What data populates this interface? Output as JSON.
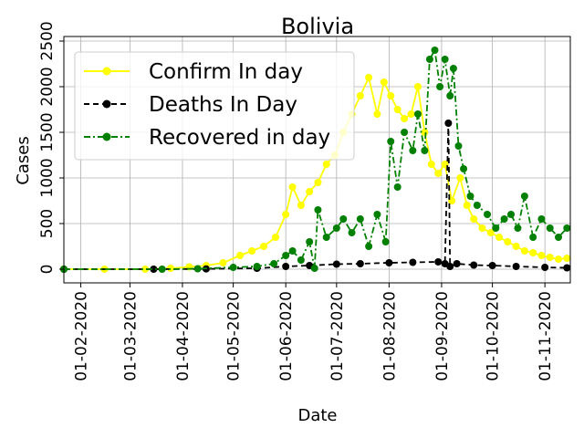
{
  "chart_data": {
    "type": "line",
    "title": "Bolivia",
    "xlabel": "Date",
    "ylabel": "Cases",
    "x_range": [
      "2020-01-22",
      "2020-11-16"
    ],
    "ylim": [
      -150,
      2550
    ],
    "grid": true,
    "legend_position": "top-left",
    "x_ticks": [
      "01-02-2020",
      "01-03-2020",
      "01-04-2020",
      "01-05-2020",
      "01-06-2020",
      "01-07-2020",
      "01-08-2020",
      "01-09-2020",
      "01-10-2020",
      "01-11-2020"
    ],
    "x_tick_dates": [
      "2020-02-01",
      "2020-03-01",
      "2020-04-01",
      "2020-05-01",
      "2020-06-01",
      "2020-07-01",
      "2020-08-01",
      "2020-09-01",
      "2020-10-01",
      "2020-11-01"
    ],
    "y_ticks": [
      0,
      500,
      1000,
      1500,
      2000,
      2500
    ],
    "series": [
      {
        "name": "Confirm In day",
        "color": "#ffff00",
        "line_style": "solid",
        "marker": "circle",
        "points": [
          [
            "2020-01-22",
            0
          ],
          [
            "2020-02-15",
            0
          ],
          [
            "2020-03-10",
            0
          ],
          [
            "2020-03-25",
            10
          ],
          [
            "2020-04-05",
            25
          ],
          [
            "2020-04-15",
            40
          ],
          [
            "2020-04-25",
            70
          ],
          [
            "2020-05-05",
            150
          ],
          [
            "2020-05-12",
            200
          ],
          [
            "2020-05-19",
            250
          ],
          [
            "2020-05-26",
            350
          ],
          [
            "2020-06-01",
            600
          ],
          [
            "2020-06-05",
            900
          ],
          [
            "2020-06-10",
            700
          ],
          [
            "2020-06-15",
            850
          ],
          [
            "2020-06-20",
            950
          ],
          [
            "2020-06-25",
            1150
          ],
          [
            "2020-06-30",
            1250
          ],
          [
            "2020-07-05",
            1500
          ],
          [
            "2020-07-10",
            1700
          ],
          [
            "2020-07-15",
            1900
          ],
          [
            "2020-07-20",
            2100
          ],
          [
            "2020-07-25",
            1700
          ],
          [
            "2020-07-29",
            2050
          ],
          [
            "2020-08-02",
            1900
          ],
          [
            "2020-08-06",
            1750
          ],
          [
            "2020-08-10",
            1650
          ],
          [
            "2020-08-14",
            1700
          ],
          [
            "2020-08-18",
            2000
          ],
          [
            "2020-08-22",
            1500
          ],
          [
            "2020-08-26",
            1150
          ],
          [
            "2020-08-30",
            1050
          ],
          [
            "2020-09-03",
            1150
          ],
          [
            "2020-09-07",
            750
          ],
          [
            "2020-09-12",
            1000
          ],
          [
            "2020-09-16",
            700
          ],
          [
            "2020-09-20",
            550
          ],
          [
            "2020-09-25",
            450
          ],
          [
            "2020-09-30",
            400
          ],
          [
            "2020-10-05",
            350
          ],
          [
            "2020-10-10",
            300
          ],
          [
            "2020-10-15",
            250
          ],
          [
            "2020-10-20",
            200
          ],
          [
            "2020-10-25",
            180
          ],
          [
            "2020-10-30",
            150
          ],
          [
            "2020-11-04",
            130
          ],
          [
            "2020-11-09",
            110
          ],
          [
            "2020-11-14",
            120
          ]
        ]
      },
      {
        "name": "Deaths In Day",
        "color": "#000000",
        "line_style": "dashed",
        "marker": "circle",
        "points": [
          [
            "2020-01-22",
            0
          ],
          [
            "2020-03-15",
            0
          ],
          [
            "2020-04-15",
            3
          ],
          [
            "2020-05-15",
            10
          ],
          [
            "2020-06-01",
            30
          ],
          [
            "2020-06-15",
            40
          ],
          [
            "2020-07-01",
            55
          ],
          [
            "2020-07-15",
            60
          ],
          [
            "2020-08-01",
            70
          ],
          [
            "2020-08-15",
            75
          ],
          [
            "2020-08-30",
            80
          ],
          [
            "2020-09-03",
            60
          ],
          [
            "2020-09-05",
            1600
          ],
          [
            "2020-09-06",
            30
          ],
          [
            "2020-09-10",
            60
          ],
          [
            "2020-09-20",
            45
          ],
          [
            "2020-10-01",
            40
          ],
          [
            "2020-10-15",
            30
          ],
          [
            "2020-11-01",
            20
          ],
          [
            "2020-11-14",
            15
          ]
        ]
      },
      {
        "name": "Recovered in day",
        "color": "#008000",
        "line_style": "dashdot",
        "marker": "circle",
        "points": [
          [
            "2020-01-22",
            0
          ],
          [
            "2020-03-20",
            0
          ],
          [
            "2020-04-10",
            5
          ],
          [
            "2020-05-01",
            20
          ],
          [
            "2020-05-15",
            30
          ],
          [
            "2020-05-25",
            60
          ],
          [
            "2020-06-01",
            150
          ],
          [
            "2020-06-05",
            200
          ],
          [
            "2020-06-10",
            100
          ],
          [
            "2020-06-15",
            300
          ],
          [
            "2020-06-18",
            10
          ],
          [
            "2020-06-20",
            650
          ],
          [
            "2020-06-25",
            350
          ],
          [
            "2020-07-01",
            450
          ],
          [
            "2020-07-05",
            550
          ],
          [
            "2020-07-10",
            400
          ],
          [
            "2020-07-15",
            550
          ],
          [
            "2020-07-20",
            250
          ],
          [
            "2020-07-25",
            600
          ],
          [
            "2020-07-30",
            300
          ],
          [
            "2020-08-02",
            1400
          ],
          [
            "2020-08-06",
            900
          ],
          [
            "2020-08-10",
            1500
          ],
          [
            "2020-08-15",
            1300
          ],
          [
            "2020-08-18",
            1700
          ],
          [
            "2020-08-22",
            1300
          ],
          [
            "2020-08-25",
            2300
          ],
          [
            "2020-08-28",
            2400
          ],
          [
            "2020-08-31",
            2000
          ],
          [
            "2020-09-03",
            2300
          ],
          [
            "2020-09-06",
            1900
          ],
          [
            "2020-09-08",
            2200
          ],
          [
            "2020-09-11",
            1350
          ],
          [
            "2020-09-14",
            1100
          ],
          [
            "2020-09-18",
            800
          ],
          [
            "2020-09-22",
            700
          ],
          [
            "2020-09-28",
            600
          ],
          [
            "2020-10-03",
            450
          ],
          [
            "2020-10-08",
            550
          ],
          [
            "2020-10-12",
            600
          ],
          [
            "2020-10-16",
            450
          ],
          [
            "2020-10-20",
            800
          ],
          [
            "2020-10-25",
            350
          ],
          [
            "2020-10-30",
            550
          ],
          [
            "2020-11-04",
            450
          ],
          [
            "2020-11-09",
            350
          ],
          [
            "2020-11-14",
            450
          ]
        ]
      }
    ]
  }
}
